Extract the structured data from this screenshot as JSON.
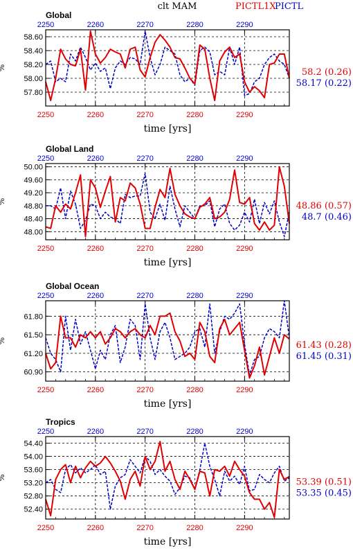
{
  "header": {
    "title": "clt MAM",
    "series_red_label": "PICTL1X",
    "series_blue_label": "PICTL"
  },
  "colors": {
    "red": "#e00000",
    "blue": "#0000cc",
    "grid": "#000000"
  },
  "chart_data": [
    {
      "type": "line",
      "title": "Global",
      "xlabel": "time [yrs]",
      "ylabel": "%",
      "xlim": [
        2250,
        2299
      ],
      "ylim": [
        57.6,
        58.7
      ],
      "xticks": [
        2250,
        2260,
        2270,
        2280,
        2290
      ],
      "xtick_labels": [
        "2250",
        "2260",
        "2270",
        "2280",
        "2290"
      ],
      "yticks": [
        57.8,
        58.0,
        58.2,
        58.4,
        58.6
      ],
      "ytick_labels": [
        "57.80",
        "58.00",
        "58.20",
        "58.40",
        "58.60"
      ],
      "grid": true,
      "series": [
        {
          "name": "PICTL1X",
          "color": "#e00000",
          "x": [
            2250,
            2251,
            2252,
            2253,
            2254,
            2255,
            2256,
            2257,
            2258,
            2259,
            2260,
            2261,
            2262,
            2263,
            2264,
            2265,
            2266,
            2267,
            2268,
            2269,
            2270,
            2271,
            2272,
            2273,
            2274,
            2275,
            2276,
            2277,
            2278,
            2279,
            2280,
            2281,
            2282,
            2283,
            2284,
            2285,
            2286,
            2287,
            2288,
            2289,
            2290,
            2291,
            2292,
            2293,
            2294,
            2295,
            2296,
            2297,
            2298,
            2299
          ],
          "values": [
            57.95,
            57.68,
            58.0,
            58.42,
            58.28,
            58.2,
            58.18,
            58.42,
            57.83,
            58.68,
            58.35,
            58.22,
            58.3,
            58.42,
            58.38,
            58.35,
            58.15,
            58.42,
            58.45,
            58.12,
            58.02,
            58.3,
            58.52,
            58.63,
            58.55,
            58.45,
            58.3,
            58.28,
            58.15,
            58.0,
            57.92,
            58.48,
            58.42,
            58.0,
            57.68,
            58.25,
            58.38,
            58.45,
            58.3,
            58.35,
            57.95,
            57.8,
            57.88,
            57.82,
            57.72,
            58.2,
            58.22,
            58.35,
            58.35,
            58.0
          ],
          "summary_label": "58.2 (0.26)"
        },
        {
          "name": "PICTL",
          "color": "#0000cc",
          "x": [
            2250,
            2251,
            2252,
            2253,
            2254,
            2255,
            2256,
            2257,
            2258,
            2259,
            2260,
            2261,
            2262,
            2263,
            2264,
            2265,
            2266,
            2267,
            2268,
            2269,
            2270,
            2271,
            2272,
            2273,
            2274,
            2275,
            2276,
            2277,
            2278,
            2279,
            2280,
            2281,
            2282,
            2283,
            2284,
            2285,
            2286,
            2287,
            2288,
            2289,
            2290,
            2291,
            2292,
            2293,
            2294,
            2295,
            2296,
            2297,
            2298,
            2299
          ],
          "values": [
            58.2,
            58.25,
            57.95,
            58.0,
            57.95,
            58.35,
            58.25,
            58.45,
            58.3,
            58.12,
            58.22,
            58.1,
            58.15,
            57.85,
            58.15,
            58.25,
            58.2,
            58.3,
            58.28,
            58.2,
            58.68,
            58.3,
            58.05,
            58.2,
            58.45,
            58.4,
            58.35,
            58.05,
            57.95,
            58.0,
            57.9,
            58.4,
            58.45,
            58.38,
            58.05,
            58.1,
            58.05,
            58.45,
            58.2,
            58.45,
            57.75,
            57.78,
            57.95,
            58.0,
            58.2,
            58.3,
            58.35,
            58.25,
            58.2,
            58.0
          ],
          "summary_label": "58.17 (0.22)"
        }
      ]
    },
    {
      "type": "line",
      "title": "Global Land",
      "xlabel": "time [yrs]",
      "ylabel": "%",
      "xlim": [
        2250,
        2299
      ],
      "ylim": [
        47.75,
        50.1
      ],
      "xticks": [
        2250,
        2260,
        2270,
        2280,
        2290
      ],
      "xtick_labels": [
        "2250",
        "2260",
        "2270",
        "2280",
        "2290"
      ],
      "yticks": [
        48.0,
        48.4,
        48.8,
        49.2,
        49.6,
        50.0
      ],
      "ytick_labels": [
        "48.00",
        "48.40",
        "48.80",
        "49.20",
        "49.60",
        "50.00"
      ],
      "grid": true,
      "series": [
        {
          "name": "PICTL1X",
          "color": "#e00000",
          "x": [
            2250,
            2251,
            2252,
            2253,
            2254,
            2255,
            2256,
            2257,
            2258,
            2259,
            2260,
            2261,
            2262,
            2263,
            2264,
            2265,
            2266,
            2267,
            2268,
            2269,
            2270,
            2271,
            2272,
            2273,
            2274,
            2275,
            2276,
            2277,
            2278,
            2279,
            2280,
            2281,
            2282,
            2283,
            2284,
            2285,
            2286,
            2287,
            2288,
            2289,
            2290,
            2291,
            2292,
            2293,
            2294,
            2295,
            2296,
            2297,
            2298,
            2299
          ],
          "values": [
            48.15,
            48.1,
            48.8,
            48.6,
            48.85,
            48.7,
            49.2,
            49.75,
            47.85,
            49.6,
            49.35,
            48.75,
            49.25,
            49.7,
            48.3,
            49.05,
            48.95,
            49.5,
            49.35,
            48.85,
            48.1,
            48.1,
            48.75,
            49.3,
            49.05,
            49.95,
            49.15,
            48.8,
            48.55,
            48.45,
            48.4,
            48.75,
            48.85,
            49.05,
            48.4,
            48.45,
            48.6,
            49.0,
            49.9,
            48.9,
            48.85,
            49.05,
            48.25,
            48.05,
            48.3,
            48.05,
            48.2,
            50.0,
            49.4,
            48.25
          ],
          "summary_label": "48.86 (0.57)"
        },
        {
          "name": "PICTL",
          "color": "#0000cc",
          "x": [
            2250,
            2251,
            2252,
            2253,
            2254,
            2255,
            2256,
            2257,
            2258,
            2259,
            2260,
            2261,
            2262,
            2263,
            2264,
            2265,
            2266,
            2267,
            2268,
            2269,
            2270,
            2271,
            2272,
            2273,
            2274,
            2275,
            2276,
            2277,
            2278,
            2279,
            2280,
            2281,
            2282,
            2283,
            2284,
            2285,
            2286,
            2287,
            2288,
            2289,
            2290,
            2291,
            2292,
            2293,
            2294,
            2295,
            2296,
            2297,
            2298,
            2299
          ],
          "values": [
            48.8,
            48.8,
            48.7,
            49.35,
            48.4,
            49.25,
            48.85,
            48.1,
            48.35,
            48.85,
            48.8,
            48.4,
            48.6,
            48.45,
            48.4,
            48.25,
            49.15,
            49.05,
            49.1,
            49.1,
            49.8,
            48.6,
            48.4,
            48.85,
            48.35,
            49.4,
            48.7,
            48.15,
            48.8,
            48.6,
            48.4,
            48.8,
            48.8,
            48.95,
            48.15,
            48.7,
            48.85,
            48.25,
            48.05,
            48.2,
            48.6,
            48.3,
            49.0,
            48.25,
            48.9,
            48.55,
            48.95,
            48.3,
            47.85,
            48.6
          ],
          "summary_label": "48.7 (0.46)"
        }
      ]
    },
    {
      "type": "line",
      "title": "Global Ocean",
      "xlabel": "time [yrs]",
      "ylabel": "%",
      "xlim": [
        2250,
        2299
      ],
      "ylim": [
        60.75,
        62.05
      ],
      "xticks": [
        2250,
        2260,
        2270,
        2280,
        2290
      ],
      "xtick_labels": [
        "2250",
        "2260",
        "2270",
        "2280",
        "2290"
      ],
      "yticks": [
        60.9,
        61.2,
        61.5,
        61.8
      ],
      "ytick_labels": [
        "60.90",
        "61.20",
        "61.50",
        "61.80"
      ],
      "grid": true,
      "series": [
        {
          "name": "PICTL1X",
          "color": "#e00000",
          "x": [
            2250,
            2251,
            2252,
            2253,
            2254,
            2255,
            2256,
            2257,
            2258,
            2259,
            2260,
            2261,
            2262,
            2263,
            2264,
            2265,
            2266,
            2267,
            2268,
            2269,
            2270,
            2271,
            2272,
            2273,
            2274,
            2275,
            2276,
            2277,
            2278,
            2279,
            2280,
            2281,
            2282,
            2283,
            2284,
            2285,
            2286,
            2287,
            2288,
            2289,
            2290,
            2291,
            2292,
            2293,
            2294,
            2295,
            2296,
            2297,
            2298,
            2299
          ],
          "values": [
            61.2,
            60.95,
            61.05,
            61.8,
            61.45,
            61.45,
            61.3,
            61.5,
            61.45,
            61.55,
            61.45,
            61.55,
            61.35,
            61.45,
            61.6,
            61.55,
            61.45,
            61.55,
            61.6,
            61.5,
            61.45,
            61.65,
            61.5,
            61.8,
            61.8,
            61.85,
            61.55,
            61.4,
            61.15,
            61.2,
            61.1,
            61.7,
            61.55,
            61.15,
            61.05,
            61.6,
            61.75,
            61.5,
            61.6,
            61.7,
            61.25,
            60.8,
            61.0,
            61.3,
            60.85,
            61.15,
            61.45,
            61.2,
            61.5,
            61.43
          ],
          "summary_label": "61.43 (0.28)"
        },
        {
          "name": "PICTL",
          "color": "#0000cc",
          "x": [
            2250,
            2251,
            2252,
            2253,
            2254,
            2255,
            2256,
            2257,
            2258,
            2259,
            2260,
            2261,
            2262,
            2263,
            2264,
            2265,
            2266,
            2267,
            2268,
            2269,
            2270,
            2271,
            2272,
            2273,
            2274,
            2275,
            2276,
            2277,
            2278,
            2279,
            2280,
            2281,
            2282,
            2283,
            2284,
            2285,
            2286,
            2287,
            2288,
            2289,
            2290,
            2291,
            2292,
            2293,
            2294,
            2295,
            2296,
            2297,
            2298,
            2299
          ],
          "values": [
            61.45,
            61.2,
            61.1,
            60.9,
            61.8,
            61.25,
            61.75,
            61.35,
            61.55,
            61.25,
            60.95,
            61.25,
            61.1,
            61.5,
            61.65,
            61.05,
            61.3,
            61.75,
            61.65,
            61.1,
            62.0,
            61.45,
            61.1,
            61.55,
            61.7,
            61.45,
            61.1,
            61.15,
            61.2,
            61.3,
            61.55,
            61.6,
            61.3,
            62.0,
            61.2,
            61.55,
            61.8,
            61.75,
            61.85,
            62.0,
            61.35,
            60.85,
            61.1,
            61.15,
            61.45,
            61.6,
            61.55,
            61.45,
            62.05,
            61.45
          ],
          "summary_label": "61.45 (0.31)"
        }
      ]
    },
    {
      "type": "line",
      "title": "Tropics",
      "xlabel": "time [yrs]",
      "ylabel": "%",
      "xlim": [
        2250,
        2299
      ],
      "ylim": [
        52.1,
        54.6
      ],
      "xticks": [
        2250,
        2260,
        2270,
        2280,
        2290
      ],
      "xtick_labels": [
        "2250",
        "2260",
        "2270",
        "2280",
        "2290"
      ],
      "yticks": [
        52.4,
        52.8,
        53.2,
        53.6,
        54.0,
        54.4
      ],
      "ytick_labels": [
        "52.40",
        "52.80",
        "53.20",
        "53.60",
        "54.00",
        "54.40"
      ],
      "grid": true,
      "series": [
        {
          "name": "PICTL1X",
          "color": "#e00000",
          "x": [
            2250,
            2251,
            2252,
            2253,
            2254,
            2255,
            2256,
            2257,
            2258,
            2259,
            2260,
            2261,
            2262,
            2263,
            2264,
            2265,
            2266,
            2267,
            2268,
            2269,
            2270,
            2271,
            2272,
            2273,
            2274,
            2275,
            2276,
            2277,
            2278,
            2279,
            2280,
            2281,
            2282,
            2283,
            2284,
            2285,
            2286,
            2287,
            2288,
            2289,
            2290,
            2291,
            2292,
            2293,
            2294,
            2295,
            2296,
            2297,
            2298,
            2299
          ],
          "values": [
            52.7,
            52.2,
            53.3,
            53.6,
            53.75,
            53.2,
            53.7,
            53.35,
            53.65,
            53.85,
            53.7,
            53.8,
            54.0,
            53.8,
            53.55,
            53.25,
            52.7,
            53.3,
            53.55,
            53.1,
            54.0,
            53.6,
            53.85,
            54.45,
            53.55,
            53.85,
            53.3,
            53.0,
            53.55,
            53.3,
            53.0,
            53.55,
            53.5,
            52.8,
            53.6,
            53.55,
            53.7,
            53.4,
            53.85,
            53.6,
            53.4,
            52.9,
            52.7,
            52.7,
            52.4,
            52.6,
            52.15,
            53.6,
            53.3,
            53.39
          ],
          "summary_label": "53.39 (0.51)"
        },
        {
          "name": "PICTL",
          "color": "#0000cc",
          "x": [
            2250,
            2251,
            2252,
            2253,
            2254,
            2255,
            2256,
            2257,
            2258,
            2259,
            2260,
            2261,
            2262,
            2263,
            2264,
            2265,
            2266,
            2267,
            2268,
            2269,
            2270,
            2271,
            2272,
            2273,
            2274,
            2275,
            2276,
            2277,
            2278,
            2279,
            2280,
            2281,
            2282,
            2283,
            2284,
            2285,
            2286,
            2287,
            2288,
            2289,
            2290,
            2291,
            2292,
            2293,
            2294,
            2295,
            2296,
            2297,
            2298,
            2299
          ],
          "values": [
            53.2,
            53.3,
            53.0,
            52.9,
            53.6,
            53.75,
            53.5,
            53.65,
            53.5,
            53.6,
            53.75,
            53.45,
            53.55,
            52.4,
            53.1,
            53.35,
            53.45,
            53.9,
            53.7,
            53.5,
            54.0,
            53.85,
            53.45,
            53.6,
            53.4,
            53.25,
            52.85,
            53.05,
            53.4,
            53.35,
            53.0,
            53.6,
            54.4,
            53.7,
            53.3,
            52.8,
            53.55,
            53.25,
            53.4,
            53.15,
            53.7,
            52.95,
            53.0,
            53.45,
            53.3,
            53.2,
            53.5,
            53.7,
            53.25,
            53.35
          ],
          "summary_label": "53.35 (0.45)"
        }
      ]
    }
  ]
}
